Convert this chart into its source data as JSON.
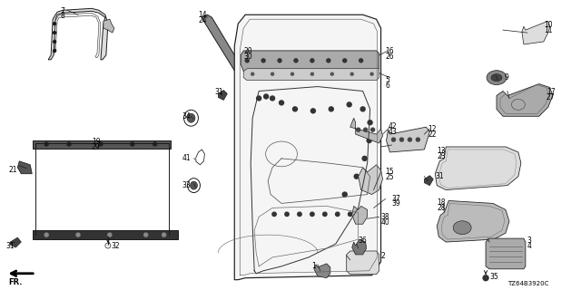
{
  "bg_color": "#ffffff",
  "line_color": "#1a1a1a",
  "part_code": "TZ64B3920C",
  "gray_fill": "#888888",
  "light_gray": "#cccccc",
  "dark_gray": "#444444",
  "mid_gray": "#666666"
}
